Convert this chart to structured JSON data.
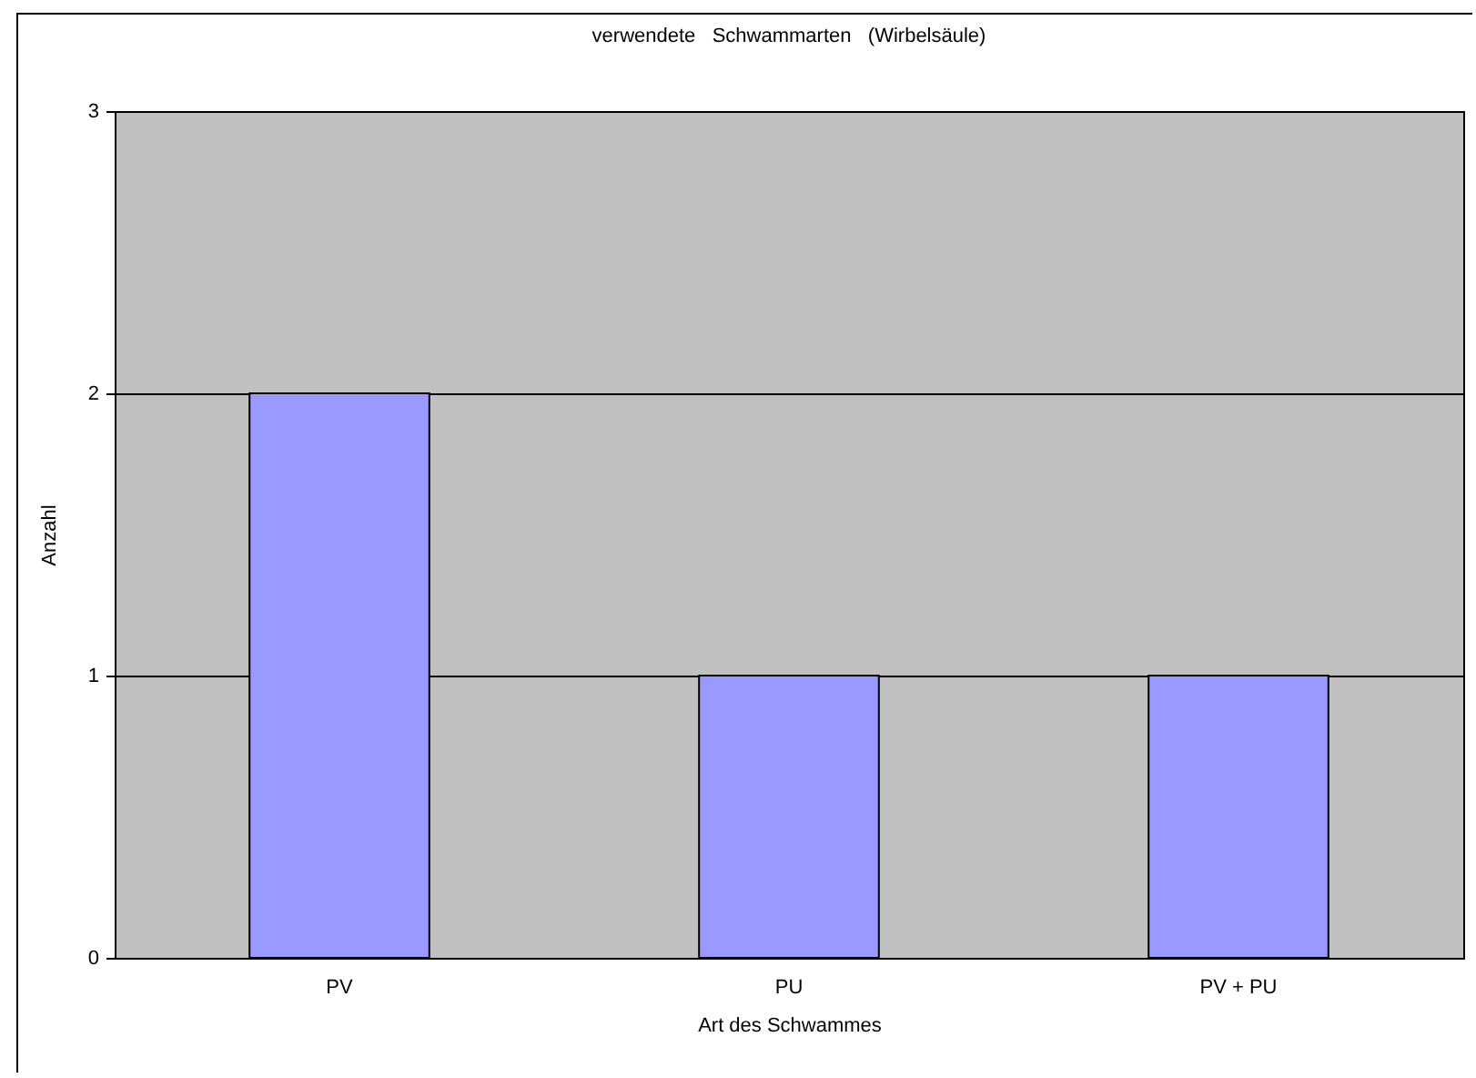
{
  "chart_data": {
    "type": "bar",
    "title": "verwendete   Schwammarten   (Wirbelsäule)",
    "xlabel": "Art des Schwammes",
    "ylabel": "Anzahl",
    "categories": [
      "PV",
      "PU",
      "PV + PU"
    ],
    "values": [
      2,
      1,
      1
    ],
    "color": "#9999ff",
    "ylim": [
      0,
      3
    ],
    "yticks": [
      0,
      1,
      2,
      3
    ],
    "grid": "y",
    "legend": false
  }
}
